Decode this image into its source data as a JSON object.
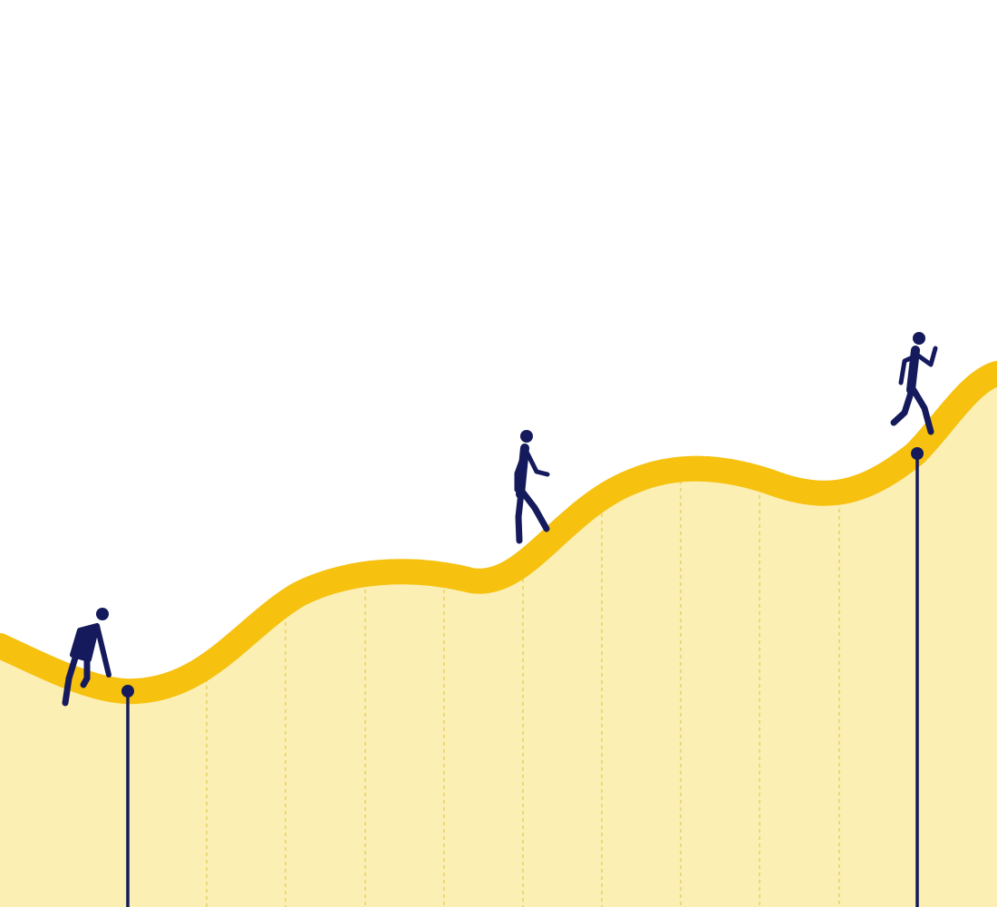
{
  "diagram": {
    "colors": {
      "background": "#ffffff",
      "fill": "#fcefb4",
      "curve": "#f6c10f",
      "guide": "#e8cf63",
      "figure": "#141a5c"
    },
    "figures": [
      {
        "pose": "crouched-start",
        "icon": "crouching-person-icon"
      },
      {
        "pose": "walking",
        "icon": "walking-person-icon"
      },
      {
        "pose": "running",
        "icon": "running-person-icon"
      }
    ],
    "markers": [
      "start-pole",
      "end-pole"
    ]
  }
}
